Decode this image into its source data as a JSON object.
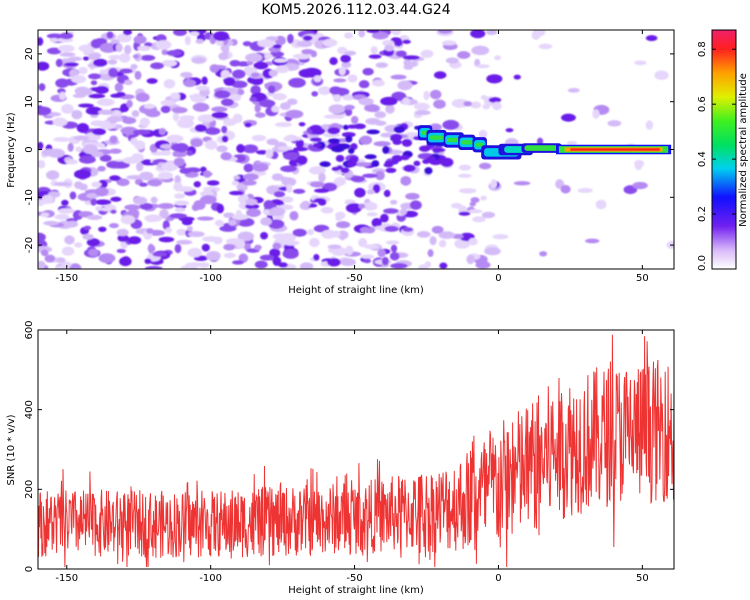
{
  "title": "KOM5.2026.112.03.44.G24",
  "chart_data": [
    {
      "type": "heatmap",
      "xlabel": "Height of straight line (km)",
      "ylabel": "Frequency (Hz)",
      "xlim": [
        -160,
        61
      ],
      "ylim": [
        -25,
        25
      ],
      "x_ticks": [
        -150,
        -100,
        -50,
        0,
        50
      ],
      "x_tick_labels": [
        "-150",
        "-100",
        "-50",
        "0",
        "50"
      ],
      "y_ticks": [
        -20,
        -10,
        0,
        10,
        20
      ],
      "y_tick_labels": [
        "-20",
        "-10",
        "0",
        "10",
        "20"
      ],
      "colorbar": {
        "label": "Normalized spectral amplitude",
        "range": [
          0.0,
          0.87
        ],
        "ticks": [
          0.0,
          0.2,
          0.4,
          0.6,
          0.8
        ],
        "tick_labels": [
          "0.0",
          "0.2",
          "0.4",
          "0.6",
          "0.8"
        ]
      },
      "grid": false
    },
    {
      "type": "line",
      "xlabel": "Height of straight line (km)",
      "ylabel": "SNR (10 * v/v)",
      "xlim": [
        -160,
        61
      ],
      "ylim": [
        0,
        600
      ],
      "x_ticks": [
        -150,
        -100,
        -50,
        0,
        50
      ],
      "x_tick_labels": [
        "-150",
        "-100",
        "-50",
        "0",
        "50"
      ],
      "y_ticks": [
        0,
        200,
        400,
        600
      ],
      "y_tick_labels": [
        "0",
        "200",
        "400",
        "600"
      ],
      "series": [
        {
          "color": "#ee3333",
          "x": [
            -160,
            -140,
            -120,
            -100,
            -80,
            -60,
            -40,
            -20,
            -10,
            0,
            10,
            20,
            30,
            40,
            50,
            60
          ],
          "level": [
            115,
            115,
            112,
            112,
            118,
            125,
            135,
            150,
            175,
            210,
            250,
            300,
            320,
            340,
            345,
            350
          ],
          "spread": [
            85,
            85,
            85,
            85,
            90,
            90,
            95,
            110,
            130,
            160,
            170,
            180,
            180,
            180,
            180,
            180
          ]
        }
      ],
      "grid": false
    }
  ]
}
